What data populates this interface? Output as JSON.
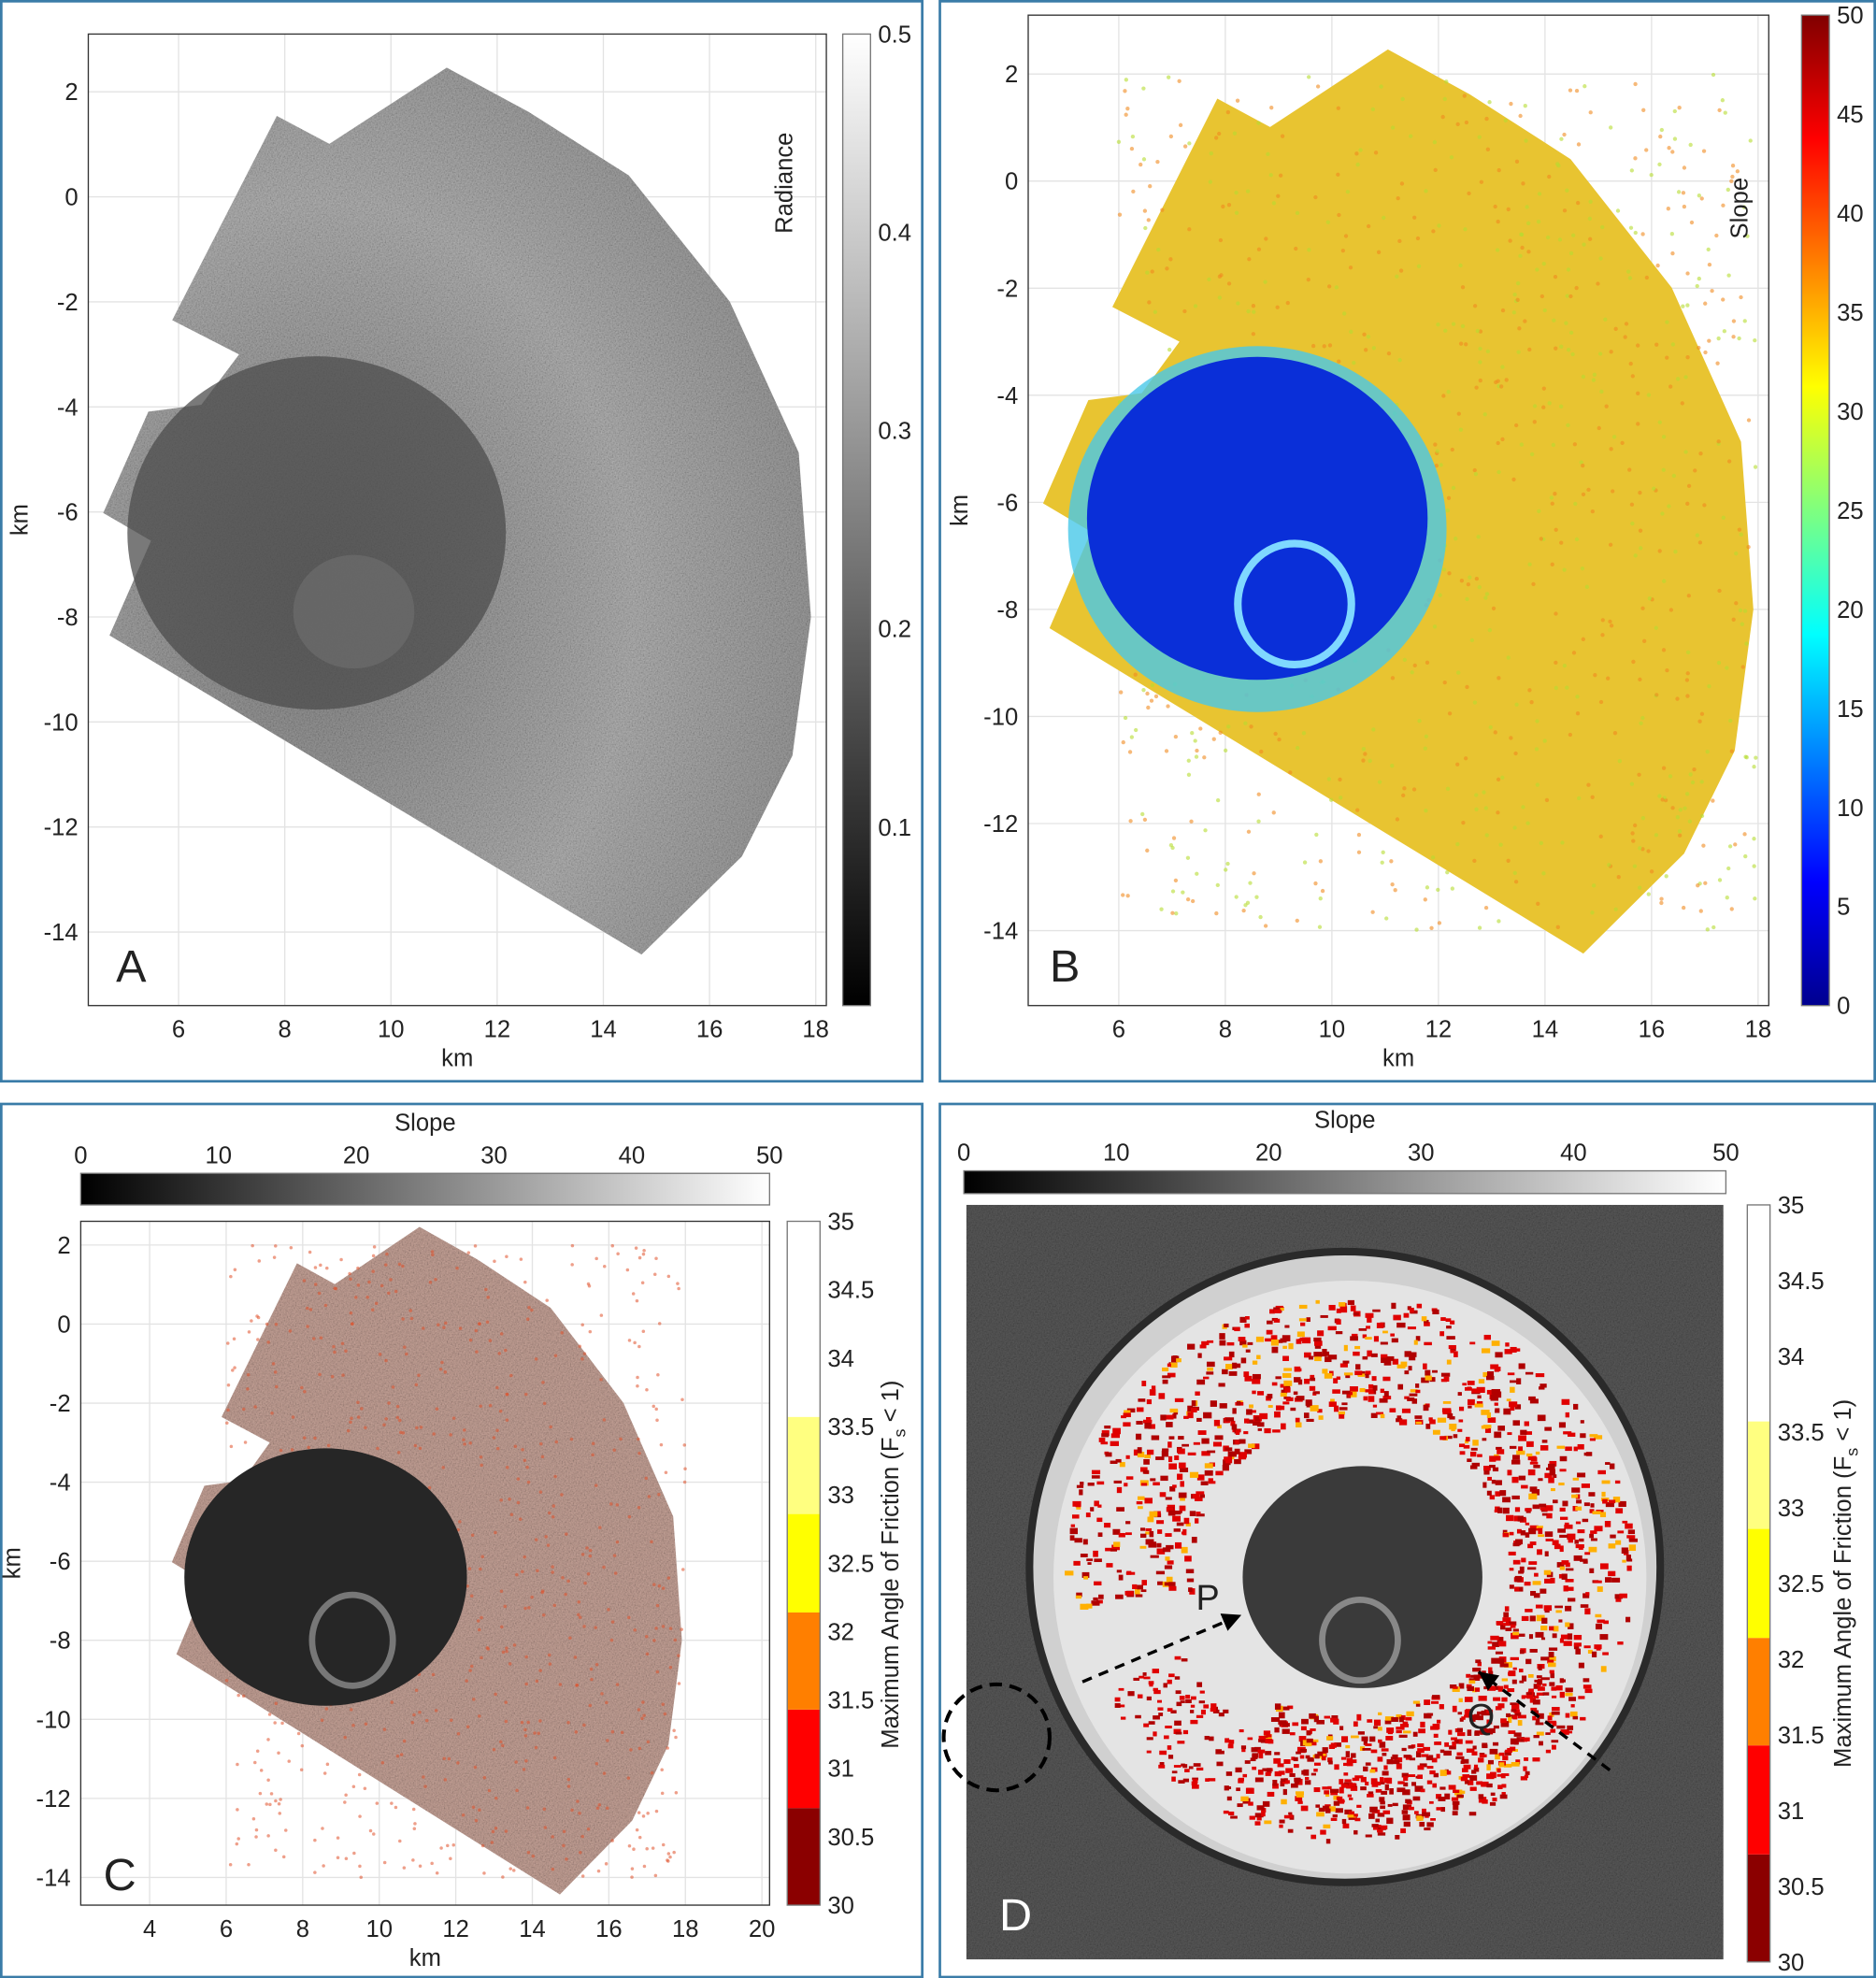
{
  "figure": {
    "panels": [
      "A",
      "B",
      "C",
      "D"
    ]
  },
  "chart_data": [
    {
      "panel": "A",
      "type": "heatmap",
      "label": "A",
      "xlabel": "km",
      "ylabel": "km",
      "xlim": [
        4.3,
        18.2
      ],
      "ylim": [
        -15.4,
        3.1
      ],
      "xticks": [
        6,
        8,
        10,
        12,
        14,
        16,
        18
      ],
      "yticks": [
        2,
        0,
        -2,
        -4,
        -6,
        -8,
        -10,
        -12,
        -14
      ],
      "grid": true,
      "colorbar": {
        "label": "Radiance",
        "colormap": "gray",
        "range": [
          0.01,
          0.5
        ],
        "ticks": [
          0.1,
          0.2,
          0.3,
          0.4,
          0.5
        ],
        "placement": "right"
      },
      "outline_km": [
        [
          4.7,
          -8.35
        ],
        [
          5.48,
          -6.55
        ],
        [
          4.58,
          -6.02
        ],
        [
          5.43,
          -4.09
        ],
        [
          6.43,
          -3.96
        ],
        [
          7.14,
          -3.0
        ],
        [
          5.88,
          -2.35
        ],
        [
          7.85,
          1.54
        ],
        [
          8.84,
          1.01
        ],
        [
          11.05,
          2.46
        ],
        [
          12.59,
          1.62
        ],
        [
          14.48,
          0.41
        ],
        [
          16.38,
          -1.99
        ],
        [
          17.68,
          -4.87
        ],
        [
          17.91,
          -8.0
        ],
        [
          17.56,
          -10.64
        ],
        [
          16.61,
          -12.56
        ],
        [
          14.72,
          -14.43
        ]
      ]
    },
    {
      "panel": "B",
      "type": "heatmap",
      "label": "B",
      "xlabel": "km",
      "ylabel": "km",
      "xlim": [
        4.3,
        18.2
      ],
      "ylim": [
        -15.4,
        3.1
      ],
      "xticks": [
        6,
        8,
        10,
        12,
        14,
        16,
        18
      ],
      "yticks": [
        2,
        0,
        -2,
        -4,
        -6,
        -8,
        -10,
        -12,
        -14
      ],
      "grid": true,
      "colorbar": {
        "label": "Slope",
        "colormap": "jet",
        "range": [
          0,
          50
        ],
        "ticks": [
          0,
          5,
          10,
          15,
          20,
          25,
          30,
          35,
          40,
          45,
          50
        ],
        "placement": "right"
      }
    },
    {
      "panel": "C",
      "type": "heatmap",
      "label": "C",
      "xlabel": "km",
      "ylabel": "km",
      "xlim": [
        2.2,
        20.2
      ],
      "ylim": [
        -14.7,
        2.6
      ],
      "xticks": [
        4,
        6,
        8,
        10,
        12,
        14,
        16,
        18,
        20
      ],
      "yticks": [
        2,
        0,
        -2,
        -4,
        -6,
        -8,
        -10,
        -12,
        -14
      ],
      "grid": true,
      "colorbar_top": {
        "label": "Slope",
        "colormap": "gray",
        "range": [
          0,
          50
        ],
        "ticks": [
          0,
          10,
          20,
          30,
          40,
          50
        ],
        "placement": "top"
      },
      "colorbar_right": {
        "label": "Maximum Angle of Friction (F",
        "label_sub": "s",
        "label_tail": " < 1)",
        "range": [
          30,
          35
        ],
        "ticks": [
          30,
          30.5,
          31,
          31.5,
          32,
          32.5,
          33,
          33.5,
          34,
          34.5,
          35
        ],
        "placement": "right",
        "bins": [
          [
            30,
            30.71,
            "#8b0000"
          ],
          [
            30.71,
            31.43,
            "#ff0000"
          ],
          [
            31.43,
            32.14,
            "#ff7f00"
          ],
          [
            32.14,
            32.86,
            "#ffff00"
          ],
          [
            32.86,
            33.57,
            "#ffff80"
          ],
          [
            33.57,
            35,
            "#ffffff"
          ]
        ]
      }
    },
    {
      "panel": "D",
      "type": "heatmap",
      "label": "D",
      "annotations": [
        "P",
        "Q"
      ],
      "colorbar_top": {
        "label": "Slope",
        "colormap": "gray",
        "range": [
          0,
          50
        ],
        "ticks": [
          0,
          10,
          20,
          30,
          40,
          50
        ],
        "placement": "top"
      },
      "colorbar_right": {
        "label": "Maximum Angle of Friction (F",
        "label_sub": "s",
        "label_tail": " < 1)",
        "range": [
          30,
          35
        ],
        "ticks": [
          30,
          30.5,
          31,
          31.5,
          32,
          32.5,
          33,
          33.5,
          34,
          34.5,
          35
        ],
        "placement": "right",
        "bins": [
          [
            30,
            30.71,
            "#8b0000"
          ],
          [
            30.71,
            31.43,
            "#ff0000"
          ],
          [
            31.43,
            32.14,
            "#ff7f00"
          ],
          [
            32.14,
            32.86,
            "#ffff00"
          ],
          [
            32.86,
            33.57,
            "#ffff80"
          ],
          [
            33.57,
            35,
            "#ffffff"
          ]
        ]
      }
    }
  ]
}
